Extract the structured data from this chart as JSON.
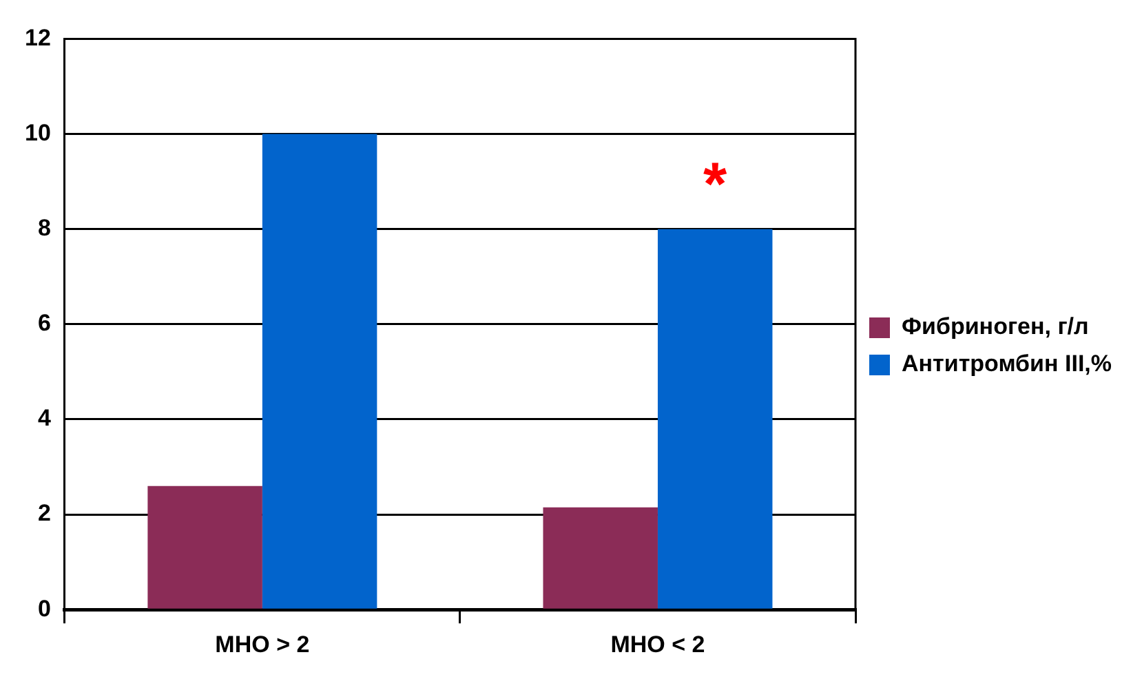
{
  "chart_data": {
    "type": "bar",
    "categories": [
      "МНО > 2",
      "МНО < 2"
    ],
    "series": [
      {
        "name": "Фибриноген, г/л",
        "color": "#8b2c57",
        "values": [
          2.6,
          2.15
        ]
      },
      {
        "name": "Антитромбин III,%",
        "color": "#0264cc",
        "values": [
          10,
          8
        ]
      }
    ],
    "ylim": [
      0,
      12
    ],
    "yticks": [
      0,
      2,
      4,
      6,
      8,
      10,
      12
    ],
    "grid": "y",
    "legend": "right",
    "annotations": [
      {
        "text": "*",
        "x": "МНО < 2",
        "y": 8
      }
    ]
  }
}
